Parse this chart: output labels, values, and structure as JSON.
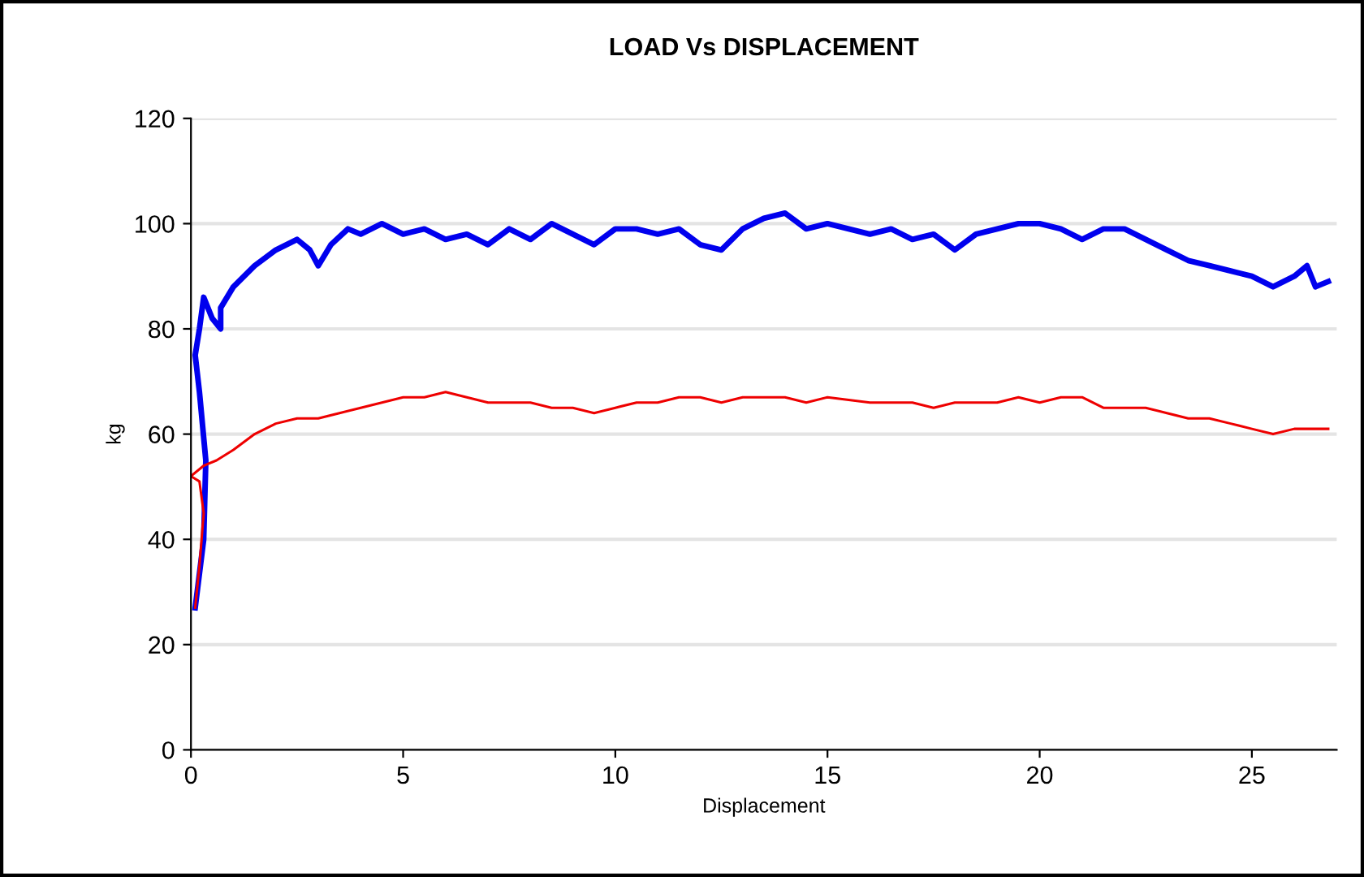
{
  "chart_data": {
    "type": "line",
    "title": "LOAD Vs DISPLACEMENT",
    "xlabel": "Displacement",
    "ylabel": "kg",
    "xlim": [
      0,
      27
    ],
    "xticks": [
      0,
      5,
      10,
      15,
      20,
      25
    ],
    "ylim": [
      0,
      120
    ],
    "yticks": [
      0,
      20,
      40,
      60,
      80,
      100,
      120
    ],
    "grid": "y",
    "legend": false,
    "marker": "none",
    "line_style": "solid",
    "series": [
      {
        "color": "#0000ee",
        "x": [
          0.1,
          0.3,
          0.35,
          0.2,
          0.1,
          0.2,
          0.3,
          0.5,
          0.7,
          0.7,
          1,
          1.5,
          2,
          2.5,
          2.8,
          3,
          3.3,
          3.7,
          4,
          4.5,
          5,
          5.5,
          6,
          6.5,
          7,
          7.5,
          8,
          8.5,
          9,
          9.5,
          10,
          10.5,
          11,
          11.5,
          12,
          12.5,
          13,
          13.5,
          14,
          14.5,
          15,
          15.5,
          16,
          16.5,
          17,
          17.5,
          18,
          18.5,
          19,
          19.5,
          20,
          20.5,
          21,
          21.5,
          22,
          22.5,
          23,
          23.5,
          24,
          24.5,
          25,
          25.5,
          26,
          26.3,
          26.5,
          26.8
        ],
        "values": [
          27,
          40,
          55,
          68,
          75,
          80,
          86,
          82,
          80,
          84,
          88,
          92,
          95,
          97,
          95,
          92,
          96,
          99,
          98,
          100,
          98,
          99,
          97,
          98,
          96,
          99,
          97,
          100,
          98,
          96,
          99,
          99,
          98,
          99,
          96,
          95,
          99,
          101,
          102,
          99,
          100,
          99,
          98,
          99,
          97,
          98,
          95,
          98,
          99,
          100,
          100,
          99,
          97,
          99,
          99,
          97,
          95,
          93,
          92,
          91,
          90,
          88,
          90,
          92,
          88,
          89
        ]
      },
      {
        "color": "#ee0000",
        "x": [
          0.1,
          0.2,
          0.3,
          0.2,
          0.0,
          0.3,
          0.6,
          1,
          1.5,
          2,
          2.5,
          3,
          3.5,
          4,
          4.5,
          5,
          5.5,
          6,
          6.5,
          7,
          7.5,
          8,
          8.5,
          9,
          9.5,
          10,
          10.5,
          11,
          11.5,
          12,
          12.5,
          13,
          13.5,
          14,
          14.5,
          15,
          16,
          17,
          17.5,
          18,
          19,
          19.5,
          20,
          20.5,
          21,
          21.5,
          22,
          22.5,
          23,
          23.5,
          24,
          24.5,
          25,
          25.5,
          26,
          26.8
        ],
        "values": [
          27,
          35,
          45,
          51,
          52,
          54,
          55,
          57,
          60,
          62,
          63,
          63,
          64,
          65,
          66,
          67,
          67,
          68,
          67,
          66,
          66,
          66,
          65,
          65,
          64,
          65,
          66,
          66,
          67,
          67,
          66,
          67,
          67,
          67,
          66,
          67,
          66,
          66,
          65,
          66,
          66,
          67,
          66,
          67,
          67,
          65,
          65,
          65,
          64,
          63,
          63,
          62,
          61,
          60,
          61,
          61
        ]
      }
    ]
  }
}
